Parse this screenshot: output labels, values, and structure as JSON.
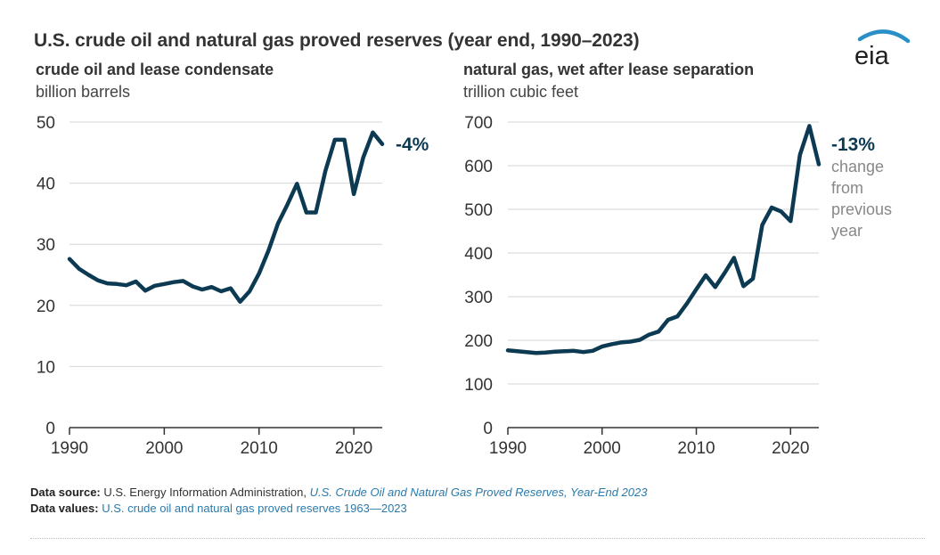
{
  "title": "U.S. crude oil and natural gas proved reserves (year end, 1990–2023)",
  "logo_text": "eia",
  "colors": {
    "line": "#0c3a52",
    "grid": "#d6d6d6",
    "axis": "#333333",
    "gray_note": "#888888",
    "link": "#2a7aab",
    "logo_arc": "#2a8fc6"
  },
  "chart_data": [
    {
      "type": "line",
      "title": "crude oil and lease condensate",
      "ylabel": "billion barrels",
      "xlabel": "",
      "xlim": [
        1990,
        2023
      ],
      "ylim": [
        0,
        50
      ],
      "yticks": [
        0,
        10,
        20,
        30,
        40,
        50
      ],
      "xticks": [
        1990,
        2000,
        2010,
        2020
      ],
      "grid": true,
      "series": [
        {
          "name": "crude oil and lease condensate",
          "x": [
            1990,
            1991,
            1992,
            1993,
            1994,
            1995,
            1996,
            1997,
            1998,
            1999,
            2000,
            2001,
            2002,
            2003,
            2004,
            2005,
            2006,
            2007,
            2008,
            2009,
            2010,
            2011,
            2012,
            2013,
            2014,
            2015,
            2016,
            2017,
            2018,
            2019,
            2020,
            2021,
            2022,
            2023
          ],
          "values": [
            27.6,
            26.0,
            25.0,
            24.1,
            23.6,
            23.5,
            23.3,
            23.9,
            22.4,
            23.2,
            23.5,
            23.8,
            24.0,
            23.1,
            22.6,
            23.0,
            22.3,
            22.8,
            20.6,
            22.3,
            25.2,
            29.0,
            33.4,
            36.5,
            39.9,
            35.2,
            35.2,
            42.0,
            47.1,
            47.1,
            38.2,
            44.2,
            48.3,
            46.4
          ]
        }
      ],
      "annotation": {
        "label": "-4%"
      }
    },
    {
      "type": "line",
      "title": "natural gas, wet after lease separation",
      "ylabel": "trillion cubic feet",
      "xlabel": "",
      "xlim": [
        1990,
        2023
      ],
      "ylim": [
        0,
        700
      ],
      "yticks": [
        0,
        100,
        200,
        300,
        400,
        500,
        600,
        700
      ],
      "xticks": [
        1990,
        2000,
        2010,
        2020
      ],
      "grid": true,
      "series": [
        {
          "name": "natural gas, wet after lease separation",
          "x": [
            1990,
            1991,
            1992,
            1993,
            1994,
            1995,
            1996,
            1997,
            1998,
            1999,
            2000,
            2001,
            2002,
            2003,
            2004,
            2005,
            2006,
            2007,
            2008,
            2009,
            2010,
            2011,
            2012,
            2013,
            2014,
            2015,
            2016,
            2017,
            2018,
            2019,
            2020,
            2021,
            2022,
            2023
          ],
          "values": [
            177,
            175,
            173,
            171,
            172,
            174,
            175,
            176,
            173,
            176,
            186,
            191,
            195,
            197,
            201,
            213,
            220,
            247,
            255,
            284,
            317,
            349,
            322,
            354,
            389,
            324,
            341,
            464,
            504,
            495,
            473,
            625,
            691,
            603
          ]
        }
      ],
      "annotation": {
        "label": "-13%",
        "note": "change from previous year",
        "note_lines": [
          "change",
          "from",
          "previous",
          "year"
        ]
      }
    }
  ],
  "footer": {
    "source_label": "Data source:",
    "source_text": "U.S. Energy Information Administration,",
    "source_link": "U.S. Crude Oil and Natural Gas Proved Reserves, Year-End 2023",
    "values_label": "Data values:",
    "values_link": "U.S. crude oil and natural gas proved reserves 1963—2023"
  }
}
